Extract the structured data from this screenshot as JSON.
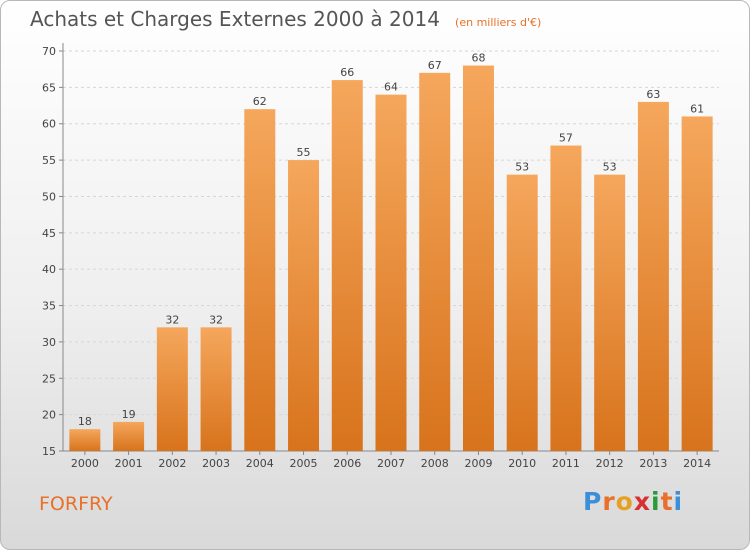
{
  "title": "Achats et Charges Externes 2000 à 2014",
  "subtitle": "(en milliers d'€)",
  "commune": "FORFRY",
  "brand": {
    "letters": [
      "P",
      "r",
      "o",
      "x",
      "i",
      "t",
      "i"
    ],
    "colors": [
      "#3a8fd8",
      "#e8702a",
      "#e8a020",
      "#d83030",
      "#2a9a3a",
      "#e8702a",
      "#3a8fd8"
    ]
  },
  "colors": {
    "bar_top": "#f5a75c",
    "bar_bottom": "#d8731c",
    "title": "#555555",
    "accent": "#e8702a"
  },
  "chart_data": {
    "type": "bar",
    "categories": [
      "2000",
      "2001",
      "2002",
      "2003",
      "2004",
      "2005",
      "2006",
      "2007",
      "2008",
      "2009",
      "2010",
      "2011",
      "2012",
      "2013",
      "2014"
    ],
    "values": [
      18,
      19,
      32,
      32,
      62,
      55,
      66,
      64,
      67,
      68,
      53,
      57,
      53,
      63,
      61
    ],
    "ylim": [
      15,
      70
    ],
    "yticks": [
      15,
      20,
      25,
      30,
      35,
      40,
      45,
      50,
      55,
      60,
      65,
      70
    ],
    "grid": true,
    "legend": "none"
  }
}
